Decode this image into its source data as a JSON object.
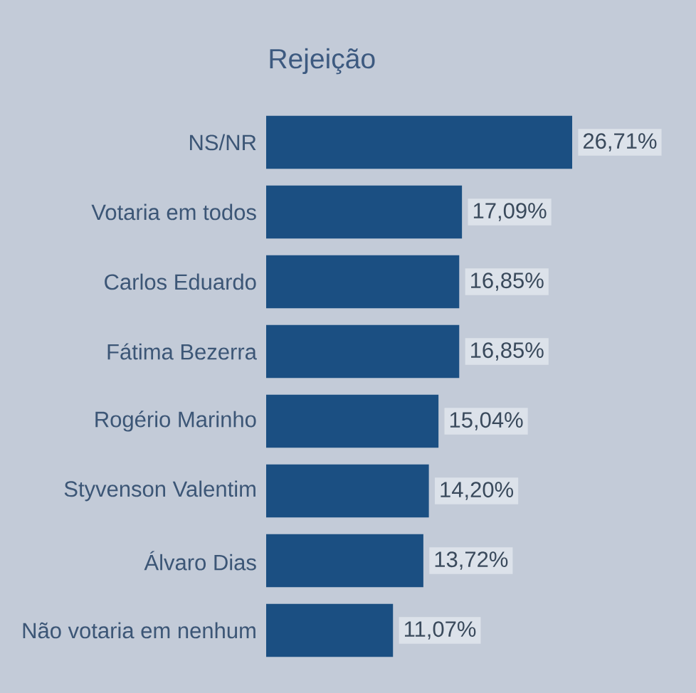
{
  "chart_data": {
    "type": "bar",
    "orientation": "horizontal",
    "title": "Rejeição",
    "categories": [
      "NS/NR",
      "Votaria em todos",
      "Carlos Eduardo",
      "Fátima Bezerra",
      "Rogério Marinho",
      "Styvenson Valentim",
      "Álvaro Dias",
      "Não votaria em nenhum"
    ],
    "values": [
      26.71,
      17.09,
      16.85,
      16.85,
      15.04,
      14.2,
      13.72,
      11.07
    ],
    "value_labels": [
      "26,71%",
      "17,09%",
      "16,85%",
      "16,85%",
      "15,04%",
      "14,20%",
      "13,72%",
      "11,07%"
    ],
    "color": "#1b4f82"
  }
}
